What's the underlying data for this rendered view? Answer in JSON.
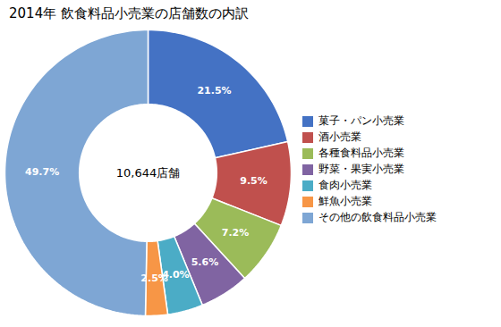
{
  "chart_data": {
    "type": "pie",
    "title": "2014年 飲食料品小売業の店舗数の内訳",
    "categories": [
      "菓子・パン小売業",
      "酒小売業",
      "各種食料品小売業",
      "野菜・果実小売業",
      "食肉小売業",
      "鮮魚小売業",
      "その他の飲食料品小売業"
    ],
    "values": [
      21.5,
      9.5,
      7.2,
      5.6,
      4.0,
      2.5,
      49.7
    ],
    "value_labels": [
      "21.5%",
      "9.5%",
      "7.2%",
      "5.6%",
      "4.0%",
      "2.5%",
      "49.7%"
    ],
    "colors": [
      "#4472C4",
      "#C0504D",
      "#9BBB59",
      "#8064A2",
      "#4BACC6",
      "#F79646",
      "#7EA6D4"
    ],
    "annotations": [
      "10,644店舗"
    ],
    "data_labels": true,
    "legend": "right"
  }
}
